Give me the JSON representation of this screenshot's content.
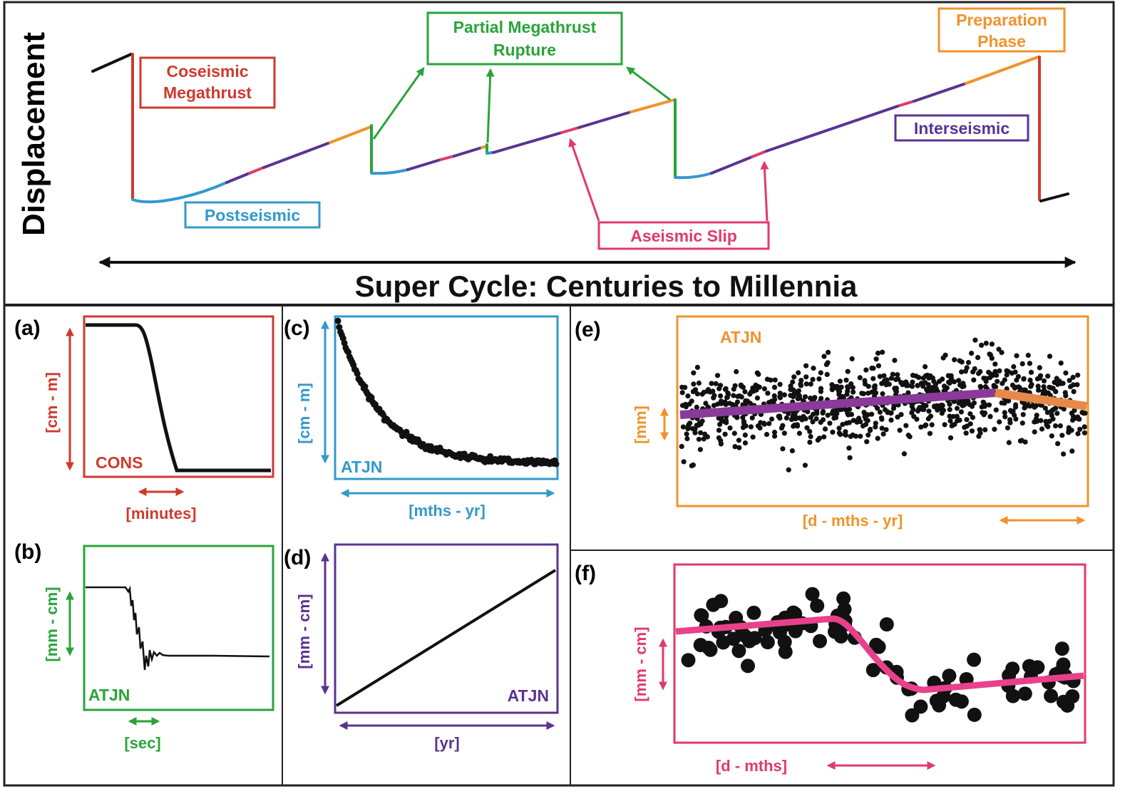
{
  "colors": {
    "coseismic": "#cf3a2e",
    "postseismic": "#3399cc",
    "interseismic": "#5a3391",
    "preparation": "#f0932b",
    "partial": "#2aa43a",
    "aseismic": "#e03a6b",
    "black": "#111111"
  },
  "top": {
    "ylabel": "Displacement",
    "xlabel": "Super Cycle: Centuries to Millennia",
    "labels": {
      "coseismic_line1": "Coseismic",
      "coseismic_line2": "Megathrust",
      "partial_line1": "Partial Megathrust",
      "partial_line2": "Rupture",
      "preparation_line1": "Preparation",
      "preparation_line2": "Phase",
      "postseismic": "Postseismic",
      "interseismic": "Interseismic",
      "aseismic": "Aseismic Slip"
    }
  },
  "panels": {
    "a": {
      "tag": "(a)",
      "station": "CONS",
      "yunit": "[cm - m]",
      "xunit": "[minutes]"
    },
    "b": {
      "tag": "(b)",
      "station": "ATJN",
      "yunit": "[mm - cm]",
      "xunit": "[sec]"
    },
    "c": {
      "tag": "(c)",
      "station": "ATJN",
      "yunit": "[cm - m]",
      "xunit": "[mths - yr]"
    },
    "d": {
      "tag": "(d)",
      "station": "ATJN",
      "yunit": "[mm - cm]",
      "xunit": "[yr]"
    },
    "e": {
      "tag": "(e)",
      "station": "ATJN",
      "yunit": "[mm]",
      "xunit": "[d - mths - yr]"
    },
    "f": {
      "tag": "(f)",
      "yunit": "[mm - cm]",
      "xunit": "[d - mths]"
    }
  }
}
